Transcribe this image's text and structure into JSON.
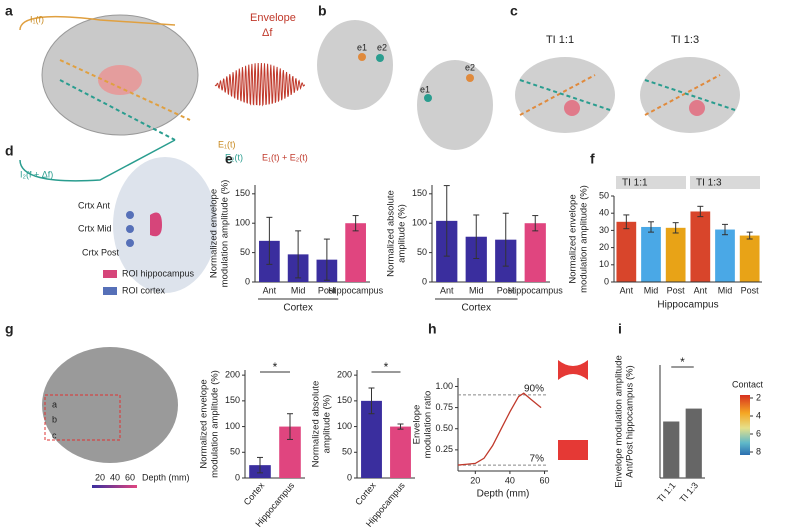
{
  "panel_labels": [
    "a",
    "b",
    "c",
    "d",
    "e",
    "f",
    "g",
    "h",
    "i"
  ],
  "panel_a": {
    "current_1": "I₁(f)",
    "envelope": "Envelope",
    "delta": "Δf",
    "field_1": "E₁(t)",
    "field_2": "E₂(t)",
    "sum": "E₁(t) + E₂(t)",
    "current_2": "I₂(f + Δf)"
  },
  "panel_b": {
    "electrodes": [
      "e1",
      "e2",
      "e1",
      "e2"
    ]
  },
  "panel_c": {
    "titles": [
      "TI 1:1",
      "TI 1:3"
    ]
  },
  "panel_d": {
    "contacts": [
      "Crtx Ant",
      "Crtx Mid",
      "Crtx Post"
    ],
    "legend": [
      "ROI hippocampus",
      "ROI cortex"
    ]
  },
  "panel_g": {
    "contacts": [
      "a",
      "b",
      "c"
    ],
    "depth_ticks": [
      "20",
      "40",
      "60"
    ],
    "depth_label": "Depth (mm)"
  },
  "chart_data": [
    {
      "type": "bar",
      "y_label": [
        "Normalized envelope",
        "modulation amplitude (%)"
      ],
      "categories": [
        "Ant",
        "Mid",
        "Post",
        "Hippocampus"
      ],
      "values": [
        70,
        47,
        38,
        100
      ],
      "errors": [
        40,
        40,
        35,
        13
      ],
      "colors": [
        "#3a2e9e",
        "#3a2e9e",
        "#3a2e9e",
        "#e0457f"
      ],
      "x_label": "Cortex",
      "ylim": [
        0,
        165
      ],
      "yticks": [
        0,
        50,
        100,
        150
      ]
    },
    {
      "type": "bar",
      "y_label": [
        "Normalized absolute",
        "amplitude (%)"
      ],
      "categories": [
        "Ant",
        "Mid",
        "Post",
        "Hippocampus"
      ],
      "values": [
        104,
        77,
        72,
        100
      ],
      "errors": [
        60,
        37,
        45,
        13
      ],
      "colors": [
        "#3a2e9e",
        "#3a2e9e",
        "#3a2e9e",
        "#e0457f"
      ],
      "x_label": "Cortex",
      "ylim": [
        0,
        165
      ],
      "yticks": [
        0,
        50,
        100,
        150
      ]
    },
    {
      "type": "bar",
      "y_label": [
        "Normalized envelope",
        "modulation amplitude (%)"
      ],
      "categories": [
        "Ant",
        "Mid",
        "Post"
      ],
      "colors": [
        "#d8452b",
        "#4aa8e6",
        "#e8a317"
      ],
      "series": [
        {
          "name": "TI 1:1",
          "values": [
            35,
            32,
            31.5
          ],
          "errors": [
            4,
            3,
            3
          ]
        },
        {
          "name": "TI 1:3",
          "values": [
            41,
            30.5,
            27
          ],
          "errors": [
            3,
            3,
            2
          ]
        }
      ],
      "x_label": "Hippocampus",
      "ylim": [
        0,
        50
      ],
      "yticks": [
        0,
        10,
        20,
        30,
        40,
        50
      ]
    },
    {
      "type": "bar",
      "y_label": [
        "Normalized envelope",
        "modulation amplitude (%)"
      ],
      "categories": [
        "Cortex",
        "Hippocampus"
      ],
      "values": [
        25,
        100
      ],
      "errors": [
        15,
        25
      ],
      "colors": [
        "#3a2e9e",
        "#e0457f"
      ],
      "annotation": "*",
      "ylim": [
        0,
        210
      ],
      "yticks": [
        0,
        50,
        100,
        150,
        200
      ]
    },
    {
      "type": "bar",
      "y_label": [
        "Normalized absolute",
        "amplitude (%)"
      ],
      "categories": [
        "Cortex",
        "Hippocampus"
      ],
      "values": [
        150,
        100
      ],
      "errors": [
        25,
        5
      ],
      "colors": [
        "#3a2e9e",
        "#e0457f"
      ],
      "annotation": "*",
      "ylim": [
        0,
        210
      ],
      "yticks": [
        0,
        50,
        100,
        150,
        200
      ]
    },
    {
      "type": "line",
      "y_label": [
        "Envelope",
        "modulation ratio"
      ],
      "x_label": "Depth (mm)",
      "color": "#c0392b",
      "x": [
        10,
        15,
        20,
        25,
        30,
        35,
        40,
        45,
        48,
        52,
        58
      ],
      "values": [
        0.07,
        0.08,
        0.09,
        0.15,
        0.3,
        0.5,
        0.7,
        0.88,
        0.92,
        0.85,
        0.75
      ],
      "reference_lines": [
        {
          "value": 0.9,
          "label": "90%"
        },
        {
          "value": 0.07,
          "label": "7%"
        }
      ],
      "xlim": [
        10,
        62
      ],
      "xticks": [
        20,
        40,
        60
      ],
      "ylim": [
        0,
        1.1
      ],
      "yticks": [
        0.25,
        {
          "value": 0.5,
          "label": "0.50"
        },
        0.75,
        {
          "value": 1,
          "label": "1.00"
        }
      ]
    },
    {
      "type": "bar",
      "y_label": [
        "Envelope modulation amplitude",
        "Ant/Post hippocampus (%)"
      ],
      "categories": [
        "TI 1:1",
        "TI 1:3"
      ],
      "values": [
        70,
        86
      ],
      "colors": [
        "#666666",
        "#666666"
      ],
      "annotation": "*",
      "ylim": [
        0,
        140
      ],
      "colorbar": {
        "title": "Contact",
        "ticks": [
          2,
          4,
          6,
          8
        ]
      }
    }
  ]
}
